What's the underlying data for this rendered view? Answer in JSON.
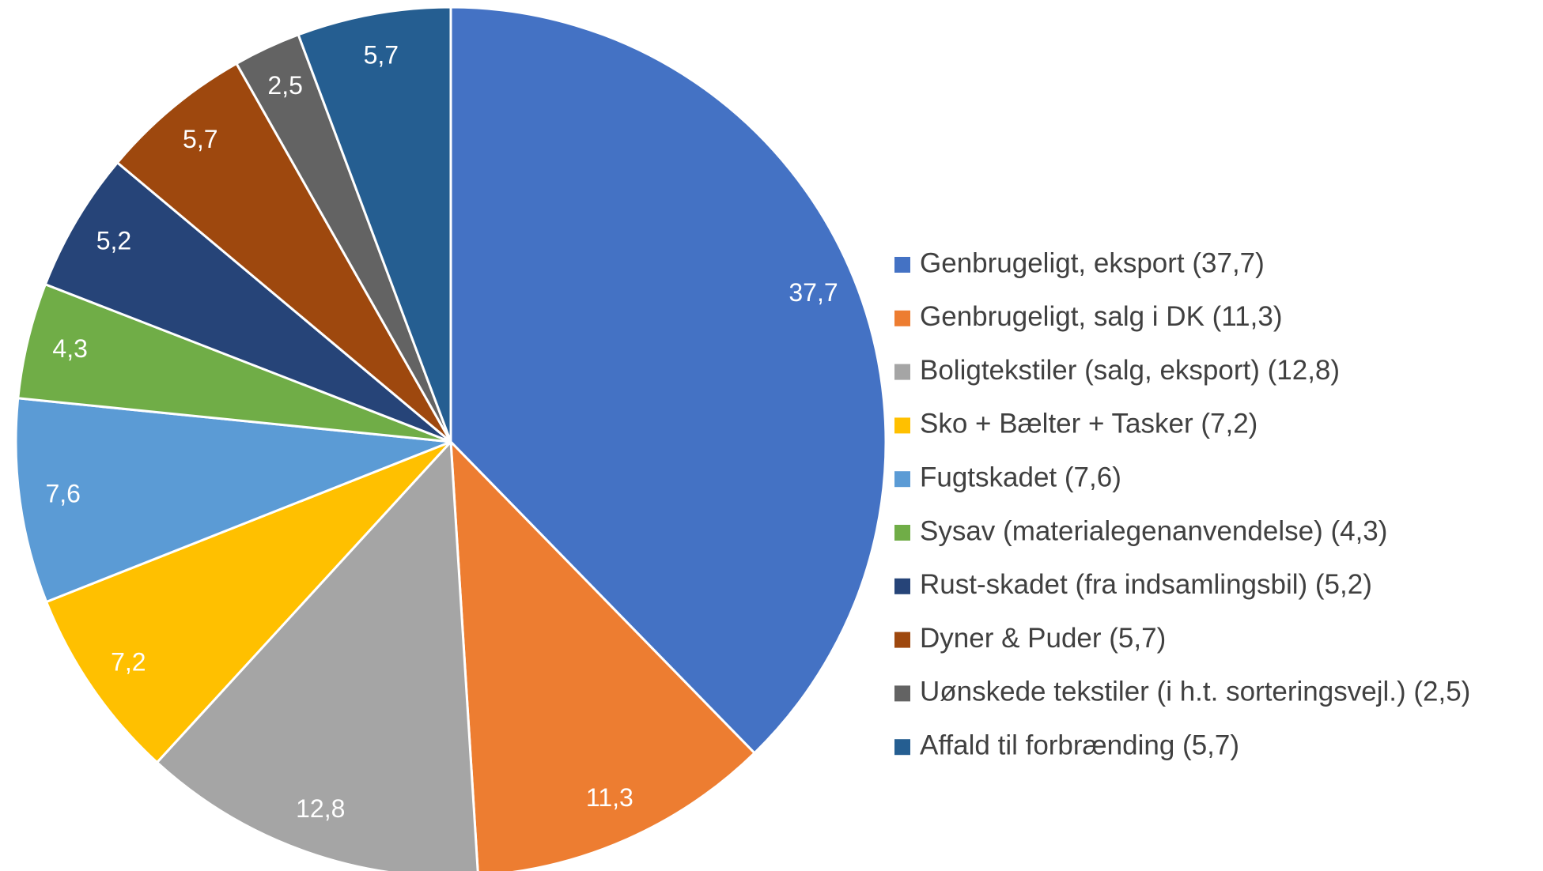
{
  "chart_data": {
    "type": "pie",
    "categories": [
      "Genbrugeligt, eksport (37,7)",
      "Genbrugeligt, salg i DK (11,3)",
      "Boligtekstiler (salg, eksport) (12,8)",
      "Sko + Bælter + Tasker (7,2)",
      "Fugtskadet (7,6)",
      "Sysav (materialegenanvendelse) (4,3)",
      "Rust-skadet (fra indsamlingsbil) (5,2)",
      "Dyner & Puder (5,7)",
      "Uønskede tekstiler (i h.t. sorteringsvejl.) (2,5)",
      "Affald til forbrænding (5,7)"
    ],
    "values": [
      37.7,
      11.3,
      12.8,
      7.2,
      7.6,
      4.3,
      5.2,
      5.7,
      2.5,
      5.7
    ],
    "value_labels": [
      "37,7",
      "11,3",
      "12,8",
      "7,2",
      "7,6",
      "4,3",
      "5,2",
      "5,7",
      "2,5",
      "5,7"
    ],
    "colors": [
      "#4472c4",
      "#ed7d31",
      "#a5a5a5",
      "#ffc000",
      "#5b9bd5",
      "#70ad47",
      "#264478",
      "#9e480e",
      "#636363",
      "#255e91"
    ],
    "legend": "right"
  }
}
